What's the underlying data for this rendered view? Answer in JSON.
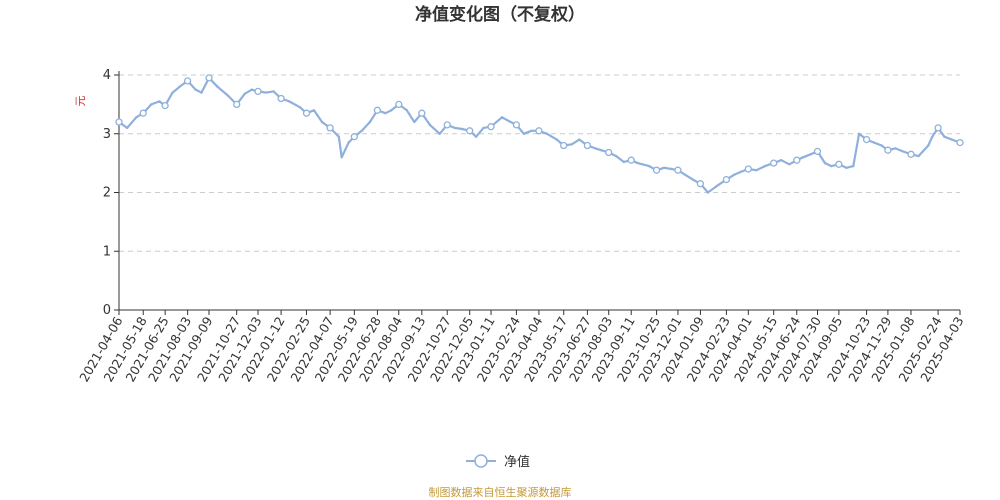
{
  "colors": {
    "series": "#8fb0dc",
    "grid": "#cccccc",
    "axis": "#333333",
    "title": "#333333",
    "ylabel": "#d0302b",
    "source": "#c49a3a"
  },
  "source_note": "制图数据来自恒生聚源数据库",
  "chart_data": {
    "type": "line",
    "title": "净值变化图（不复权）",
    "ylabel": "元",
    "xlabel": "",
    "ylim": [
      0,
      4
    ],
    "yticks": [
      0,
      1,
      2,
      3,
      4
    ],
    "grid": true,
    "legend_position": "bottom-center",
    "x_tick_labels": [
      "2021-04-06",
      "2021-05-18",
      "2021-06-25",
      "2021-08-03",
      "2021-09-09",
      "2021-10-27",
      "2021-12-03",
      "2022-01-12",
      "2022-02-25",
      "2022-04-07",
      "2022-05-19",
      "2022-06-28",
      "2022-08-04",
      "2022-09-13",
      "2022-10-27",
      "2022-12-05",
      "2023-01-11",
      "2023-02-24",
      "2023-04-04",
      "2023-05-17",
      "2023-06-27",
      "2023-08-03",
      "2023-09-11",
      "2023-10-25",
      "2023-12-01",
      "2024-01-09",
      "2024-02-23",
      "2024-04-01",
      "2024-05-15",
      "2024-06-24",
      "2024-07-30",
      "2024-09-05",
      "2024-10-23",
      "2024-11-29",
      "2025-01-08",
      "2025-02-24",
      "2025-04-03"
    ],
    "series": [
      {
        "name": "净值",
        "x": [
          "2021-04-06",
          "2021-04-20",
          "2021-05-06",
          "2021-05-18",
          "2021-06-01",
          "2021-06-15",
          "2021-06-25",
          "2021-07-08",
          "2021-07-20",
          "2021-08-03",
          "2021-08-17",
          "2021-08-27",
          "2021-09-09",
          "2021-09-24",
          "2021-10-12",
          "2021-10-27",
          "2021-11-10",
          "2021-11-22",
          "2021-12-03",
          "2021-12-17",
          "2021-12-30",
          "2022-01-12",
          "2022-01-26",
          "2022-02-14",
          "2022-02-25",
          "2022-03-10",
          "2022-03-24",
          "2022-04-07",
          "2022-04-22",
          "2022-04-27",
          "2022-05-09",
          "2022-05-19",
          "2022-06-01",
          "2022-06-15",
          "2022-06-28",
          "2022-07-12",
          "2022-07-22",
          "2022-08-04",
          "2022-08-18",
          "2022-08-31",
          "2022-09-13",
          "2022-09-27",
          "2022-10-14",
          "2022-10-27",
          "2022-11-09",
          "2022-11-22",
          "2022-12-05",
          "2022-12-16",
          "2022-12-29",
          "2023-01-11",
          "2023-01-30",
          "2023-02-10",
          "2023-02-24",
          "2023-03-09",
          "2023-03-22",
          "2023-04-04",
          "2023-04-18",
          "2023-05-05",
          "2023-05-17",
          "2023-05-31",
          "2023-06-13",
          "2023-06-27",
          "2023-07-11",
          "2023-07-21",
          "2023-08-03",
          "2023-08-16",
          "2023-08-29",
          "2023-09-11",
          "2023-09-22",
          "2023-10-12",
          "2023-10-25",
          "2023-11-07",
          "2023-11-20",
          "2023-12-01",
          "2023-12-14",
          "2023-12-27",
          "2024-01-09",
          "2024-01-22",
          "2024-02-05",
          "2024-02-23",
          "2024-03-07",
          "2024-03-19",
          "2024-04-01",
          "2024-04-15",
          "2024-04-30",
          "2024-05-15",
          "2024-05-28",
          "2024-06-11",
          "2024-06-24",
          "2024-07-05",
          "2024-07-18",
          "2024-07-30",
          "2024-08-12",
          "2024-08-23",
          "2024-09-05",
          "2024-09-18",
          "2024-09-30",
          "2024-10-10",
          "2024-10-23",
          "2024-11-05",
          "2024-11-18",
          "2024-11-29",
          "2024-12-12",
          "2024-12-25",
          "2025-01-08",
          "2025-01-21",
          "2025-02-07",
          "2025-02-14",
          "2025-02-24",
          "2025-03-07",
          "2025-03-20",
          "2025-04-03"
        ],
        "values": [
          3.2,
          3.1,
          3.28,
          3.35,
          3.5,
          3.55,
          3.48,
          3.7,
          3.8,
          3.9,
          3.75,
          3.7,
          3.95,
          3.8,
          3.65,
          3.5,
          3.68,
          3.75,
          3.72,
          3.7,
          3.72,
          3.6,
          3.55,
          3.45,
          3.35,
          3.4,
          3.2,
          3.1,
          2.95,
          2.6,
          2.85,
          2.95,
          3.05,
          3.2,
          3.4,
          3.35,
          3.4,
          3.5,
          3.4,
          3.2,
          3.35,
          3.15,
          3.0,
          3.15,
          3.1,
          3.08,
          3.05,
          2.95,
          3.1,
          3.12,
          3.28,
          3.22,
          3.15,
          3.0,
          3.05,
          3.05,
          3.0,
          2.9,
          2.8,
          2.82,
          2.9,
          2.8,
          2.75,
          2.72,
          2.68,
          2.62,
          2.52,
          2.55,
          2.5,
          2.45,
          2.38,
          2.42,
          2.4,
          2.38,
          2.3,
          2.22,
          2.15,
          2.0,
          2.1,
          2.22,
          2.3,
          2.35,
          2.4,
          2.38,
          2.45,
          2.5,
          2.55,
          2.48,
          2.55,
          2.6,
          2.65,
          2.7,
          2.5,
          2.45,
          2.48,
          2.42,
          2.45,
          3.0,
          2.9,
          2.85,
          2.8,
          2.72,
          2.75,
          2.7,
          2.65,
          2.62,
          2.8,
          2.95,
          3.1,
          2.95,
          2.9,
          2.85
        ]
      }
    ],
    "markers_shown_at": [
      "2021-04-06",
      "2021-05-18",
      "2021-06-25",
      "2021-08-03",
      "2021-09-09",
      "2021-10-27",
      "2021-12-03",
      "2022-01-12",
      "2022-02-25",
      "2022-04-07",
      "2022-05-19",
      "2022-06-28",
      "2022-08-04",
      "2022-09-13",
      "2022-10-27",
      "2022-12-05",
      "2023-01-11",
      "2023-02-24",
      "2023-04-04",
      "2023-05-17",
      "2023-06-27",
      "2023-08-03",
      "2023-09-11",
      "2023-10-25",
      "2023-12-01",
      "2024-01-09",
      "2024-02-23",
      "2024-04-01",
      "2024-05-15",
      "2024-06-24",
      "2024-07-30",
      "2024-09-05",
      "2024-10-23",
      "2024-11-29",
      "2025-01-08",
      "2025-02-24",
      "2025-04-03"
    ]
  }
}
